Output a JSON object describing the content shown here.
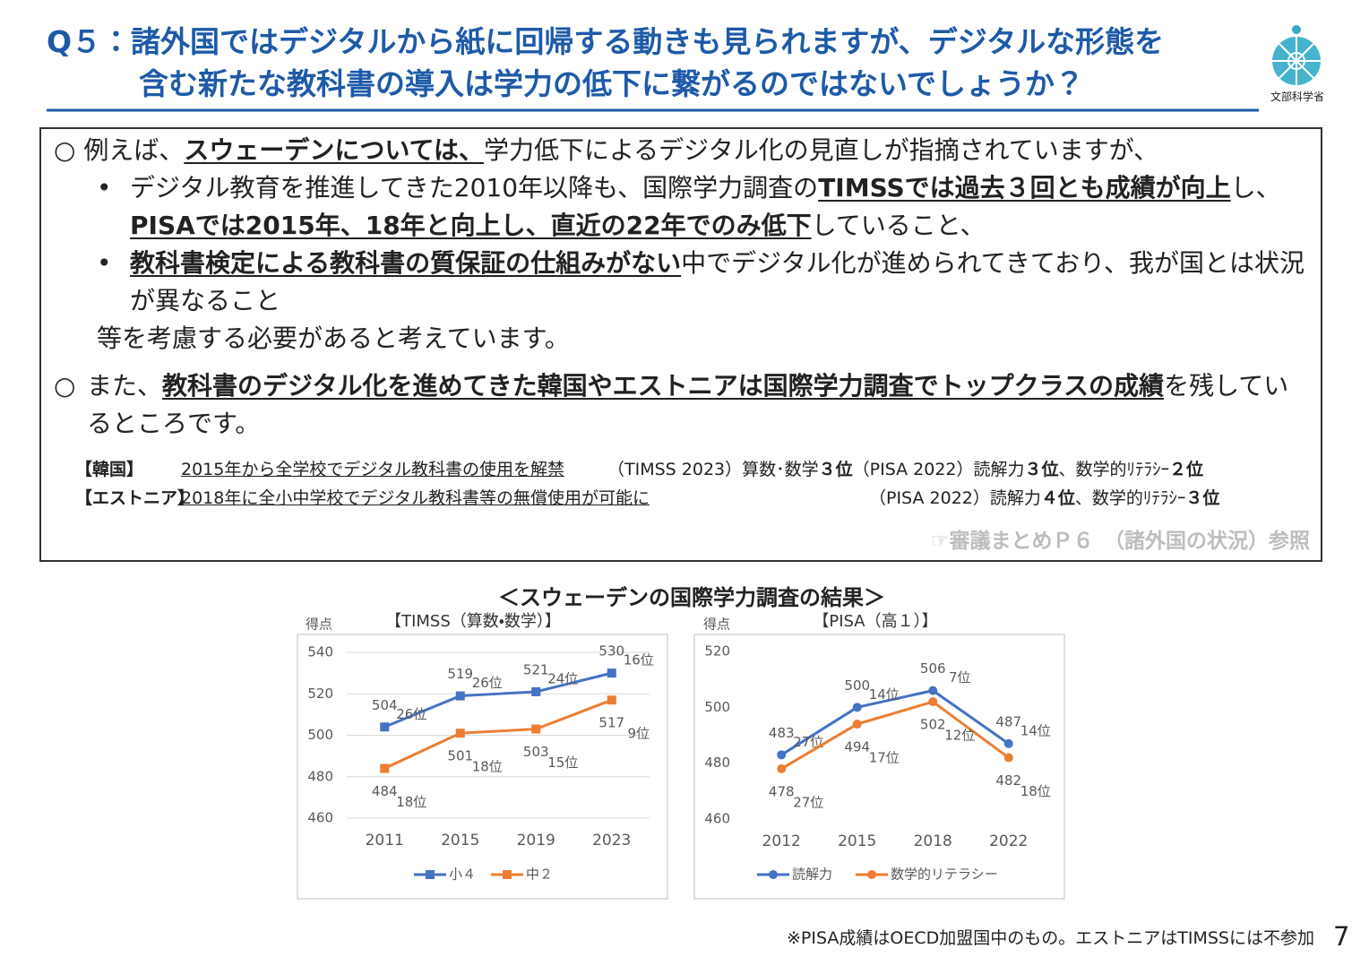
{
  "header": {
    "title_line1": "Q５：諸外国ではデジタルから紙に回帰する動きも見られますが、デジタルな形態を",
    "title_line2": "含む新たな教科書の導入は学力の低下に繋がるのではないでしょうか？",
    "logo_text": "文部科学省"
  },
  "body": {
    "p1": [
      "○",
      "例えば、",
      "スウェーデンについては、",
      "学力低下によるデジタル化の見直しが指摘されていますが、"
    ],
    "bullet1": [
      "•",
      "デジタル教育を推進してきた2010年以降も、国際学力調査の",
      "TIMSSでは過去３回とも成績が向上",
      "し、",
      "PISAでは2015年、18年と向上し、直近の22年でのみ低下",
      "していること、"
    ],
    "bullet2": [
      "•",
      "教科書検定による教科書の質保証の仕組みがない",
      "中でデジタル化が進められてきており、我が国とは状況が異なること"
    ],
    "conclusion": "等を考慮する必要があると考えています。",
    "p2": [
      "○",
      "また、",
      "教科書のデジタル化を進めてきた韓国やエストニアは国際学力調査でトップクラスの成績",
      "を残しているところです。"
    ],
    "korea": [
      "【韓国】",
      "2015年から全学校でデジタル教科書の使用を解禁",
      "（TIMSS 2023）算数･数学",
      "３位",
      "（PISA 2022）読解力",
      "３位",
      "、数学的ﾘﾃﾗｼｰ",
      "２位"
    ],
    "estonia": [
      "【エストニア】",
      "2018年に全小中学校でデジタル教科書等の無償使用が可能に",
      "（PISA 2022）読解力",
      "４位",
      "、数学的ﾘﾃﾗｼｰ",
      "３位"
    ],
    "reference": "☞審議まとめＰ６　（諸外国の状況）参照"
  },
  "charts_title": "＜スウェーデンの国際学力調査の結果＞",
  "chart_data": [
    {
      "type": "line",
      "title": "【TIMSS（算数・数学）】",
      "y_label": "得点",
      "categories": [
        "2011",
        "2015",
        "2019",
        "2023"
      ],
      "ylim": [
        460,
        540
      ],
      "yticks": [
        460,
        480,
        500,
        520,
        540
      ],
      "grid": true,
      "legend": "bottom",
      "series": [
        {
          "name": "小４",
          "color": "#4472c4",
          "marker": "square",
          "values": [
            504,
            519,
            521,
            530
          ],
          "rank_labels": [
            "26位",
            "26位",
            "24位",
            "16位"
          ]
        },
        {
          "name": "中２",
          "color": "#ed7d31",
          "marker": "square",
          "values": [
            484,
            501,
            503,
            517
          ],
          "rank_labels": [
            "18位",
            "18位",
            "15位",
            "9位"
          ]
        }
      ]
    },
    {
      "type": "line",
      "title": "【PISA（高１）】",
      "y_label": "得点",
      "categories": [
        "2012",
        "2015",
        "2018",
        "2022"
      ],
      "ylim": [
        460,
        520
      ],
      "yticks": [
        460,
        480,
        500,
        520
      ],
      "grid": false,
      "legend": "bottom",
      "series": [
        {
          "name": "読解力",
          "color": "#4472c4",
          "marker": "circle",
          "values": [
            483,
            500,
            506,
            487
          ],
          "rank_labels": [
            "27位",
            "14位",
            "7位",
            "14位"
          ]
        },
        {
          "name": "数学的リテラシー",
          "color": "#ed7d31",
          "marker": "circle",
          "values": [
            478,
            494,
            502,
            482
          ],
          "rank_labels": [
            "27位",
            "17位",
            "12位",
            "18位"
          ]
        }
      ]
    }
  ],
  "footnote": "※PISA成績はOECD加盟国中のもの。エストニアはTIMSSには不参加",
  "page_number": 7
}
